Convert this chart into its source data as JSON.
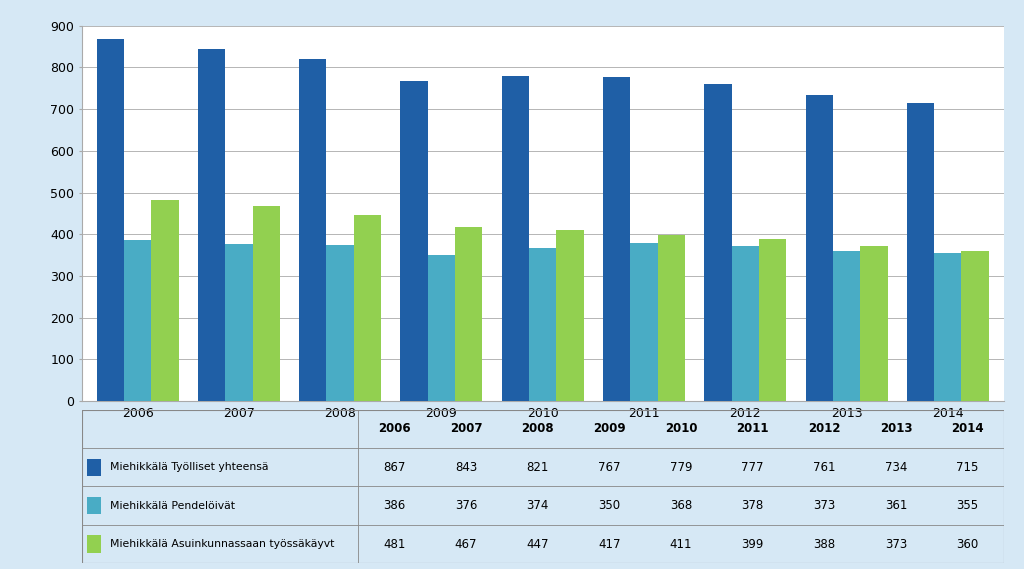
{
  "years": [
    "2006",
    "2007",
    "2008",
    "2009",
    "2010",
    "2011",
    "2012",
    "2013",
    "2014"
  ],
  "tyolliset": [
    867,
    843,
    821,
    767,
    779,
    777,
    761,
    734,
    715
  ],
  "pendeloivat": [
    386,
    376,
    374,
    350,
    368,
    378,
    373,
    361,
    355
  ],
  "asuinkunnassaan": [
    481,
    467,
    447,
    417,
    411,
    399,
    388,
    373,
    360
  ],
  "color_tyolliset": "#1F5FA6",
  "color_pendeloivat": "#49ACC5",
  "color_asuinkunnassaan": "#92D050",
  "background_outer": "#D6E8F5",
  "background_chart": "#FFFFFF",
  "ylim": [
    0,
    900
  ],
  "yticks": [
    0,
    100,
    200,
    300,
    400,
    500,
    600,
    700,
    800,
    900
  ],
  "table_row1_label": "Miehikkälä Työlliset yhteensä",
  "table_row2_label": "Miehikkälä Pendelöivät",
  "table_row3_label": "Miehikkälä Asuinkunnassaan työssäkäyvt"
}
